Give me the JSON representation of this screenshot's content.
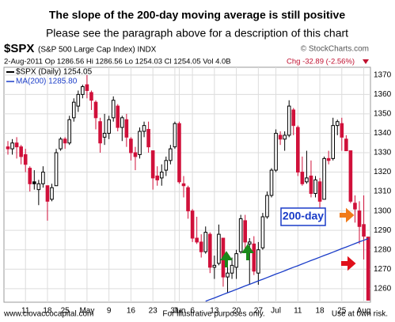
{
  "chart_data": {
    "type": "candlestick",
    "title": "The slope of the 200-day moving average is still positive",
    "subtitle": "Please see the paragraph above for a description of this chart",
    "symbol": "$SPX",
    "symbol_name": "(S&P 500 Large Cap Index) INDX",
    "source": "© StockCharts.com",
    "info": "2-Aug-2011  Op 1286.56  Hi 1286.56  Lo 1254.03  Cl 1254.05  Vol 4.0B",
    "change": "Chg -32.89 (-2.56%)",
    "annotation": "200-day",
    "footer_left": "www.ciovaccocapital.com",
    "footer_center": "For illustrative purposes only.",
    "footer_right": "Use at own risk.",
    "categories": [
      null,
      null,
      null,
      null,
      "11",
      null,
      null,
      null,
      null,
      "18",
      null,
      null,
      null,
      "25",
      null,
      null,
      null,
      null,
      "May",
      null,
      null,
      null,
      null,
      "9",
      null,
      null,
      null,
      null,
      "16",
      null,
      null,
      null,
      null,
      "23",
      null,
      null,
      null,
      null,
      "31",
      "Jun",
      null,
      null,
      "6",
      null,
      null,
      null,
      null,
      "13",
      null,
      null,
      null,
      null,
      "20",
      null,
      null,
      null,
      null,
      "27",
      null,
      null,
      null,
      "Jul",
      null,
      null,
      null,
      null,
      "11",
      null,
      null,
      null,
      null,
      "18",
      null,
      null,
      null,
      null,
      "25",
      null,
      null,
      null,
      null,
      "Aug",
      null
    ],
    "series": [
      {
        "name": "$SPX (Daily) 1254.05",
        "type": "candlestick",
        "up_color": "#000000",
        "down_color": "#d0103a",
        "open": [
          1333,
          1332,
          1335,
          1333,
          1329,
          1322,
          1315,
          1311,
          1314,
          1313,
          1306,
          1313,
          1332,
          1337,
          1335,
          1348,
          1354,
          1360,
          1365,
          1361,
          1356,
          1346,
          1338,
          1340,
          1348,
          1354,
          1343,
          1347,
          1337,
          1330,
          1329,
          1341,
          1342,
          1331,
          1318,
          1317,
          1321,
          1326,
          1333,
          1345,
          1314,
          1312,
          1300,
          1286,
          1284,
          1279,
          1288,
          1271,
          1273,
          1286,
          1266,
          1268,
          1271,
          1279,
          1295,
          1283,
          1283,
          1268,
          1281,
          1297,
          1308,
          1321,
          1339,
          1337,
          1339,
          1352,
          1343,
          1320,
          1315,
          1318,
          1309,
          1315,
          1306,
          1327,
          1327,
          1344,
          1345,
          1337,
          1331,
          1304,
          1300,
          1293,
          1286.56
        ],
        "high": [
          1336,
          1337,
          1338,
          1334,
          1332,
          1323,
          1321,
          1316,
          1323,
          1313,
          1314,
          1332,
          1338,
          1338,
          1349,
          1358,
          1362,
          1365,
          1370,
          1362,
          1357,
          1348,
          1350,
          1349,
          1359,
          1355,
          1349,
          1350,
          1338,
          1333,
          1343,
          1346,
          1346,
          1331,
          1323,
          1324,
          1328,
          1334,
          1346,
          1346,
          1318,
          1313,
          1301,
          1297,
          1288,
          1292,
          1289,
          1277,
          1293,
          1286,
          1274,
          1276,
          1280,
          1298,
          1298,
          1286,
          1287,
          1284,
          1299,
          1310,
          1322,
          1342,
          1341,
          1341,
          1357,
          1353,
          1344,
          1328,
          1331,
          1326,
          1318,
          1317,
          1328,
          1331,
          1348,
          1347,
          1348,
          1339,
          1331,
          1308,
          1305,
          1308,
          1286.56
        ],
        "low": [
          1329,
          1329,
          1327,
          1324,
          1320,
          1310,
          1311,
          1303,
          1312,
          1295,
          1305,
          1313,
          1331,
          1332,
          1334,
          1346,
          1351,
          1358,
          1358,
          1352,
          1342,
          1330,
          1334,
          1337,
          1346,
          1341,
          1336,
          1333,
          1326,
          1321,
          1327,
          1338,
          1330,
          1311,
          1313,
          1313,
          1318,
          1324,
          1332,
          1314,
          1307,
          1296,
          1284,
          1283,
          1276,
          1278,
          1268,
          1265,
          1272,
          1261,
          1258,
          1265,
          1265,
          1278,
          1280,
          1262,
          1267,
          1262,
          1280,
          1296,
          1307,
          1320,
          1334,
          1331,
          1338,
          1339,
          1318,
          1313,
          1314,
          1307,
          1307,
          1296,
          1306,
          1324,
          1326,
          1339,
          1331,
          1331,
          1304,
          1294,
          1283,
          1275,
          1254.03
        ],
        "close": [
          1332,
          1335,
          1333,
          1328,
          1324,
          1314,
          1314,
          1314,
          1320,
          1305,
          1312,
          1330,
          1337,
          1335,
          1347,
          1356,
          1360,
          1364,
          1362,
          1357,
          1348,
          1335,
          1340,
          1347,
          1357,
          1343,
          1348,
          1338,
          1330,
          1328,
          1341,
          1344,
          1333,
          1317,
          1316,
          1320,
          1326,
          1332,
          1345,
          1315,
          1313,
          1300,
          1286,
          1284,
          1279,
          1289,
          1271,
          1272,
          1288,
          1266,
          1268,
          1272,
          1278,
          1296,
          1284,
          1284,
          1269,
          1280,
          1297,
          1308,
          1321,
          1340,
          1337,
          1339,
          1354,
          1344,
          1320,
          1314,
          1317,
          1309,
          1316,
          1305,
          1327,
          1326,
          1344,
          1346,
          1338,
          1331,
          1305,
          1301,
          1292,
          1287,
          1254.05
        ]
      },
      {
        "name": "MA(200) 1285.80",
        "type": "line",
        "color": "#1a3cc8",
        "values": [
          null,
          null,
          null,
          null,
          null,
          null,
          null,
          null,
          null,
          null,
          null,
          null,
          null,
          null,
          null,
          null,
          null,
          null,
          null,
          null,
          null,
          null,
          null,
          null,
          null,
          null,
          null,
          null,
          null,
          null,
          null,
          null,
          null,
          null,
          null,
          null,
          null,
          null,
          null,
          null,
          null,
          null,
          null,
          null,
          null,
          1253.5,
          1254.4,
          1255.2,
          1256.1,
          1257.0,
          1257.9,
          1258.7,
          1259.6,
          1260.5,
          1261.4,
          1262.2,
          1263.1,
          1264.0,
          1264.8,
          1265.7,
          1266.6,
          1267.5,
          1268.3,
          1269.2,
          1270.1,
          1271.0,
          1271.8,
          1272.7,
          1273.6,
          1274.5,
          1275.3,
          1276.2,
          1277.1,
          1277.9,
          1278.8,
          1279.7,
          1280.6,
          1281.4,
          1282.3,
          1283.2,
          1284.1,
          1284.9,
          1285.8
        ]
      }
    ],
    "ylim": [
      1253,
      1374
    ],
    "yticks": [
      1260,
      1270,
      1280,
      1290,
      1300,
      1310,
      1320,
      1330,
      1340,
      1350,
      1360,
      1370
    ],
    "grid": true
  }
}
